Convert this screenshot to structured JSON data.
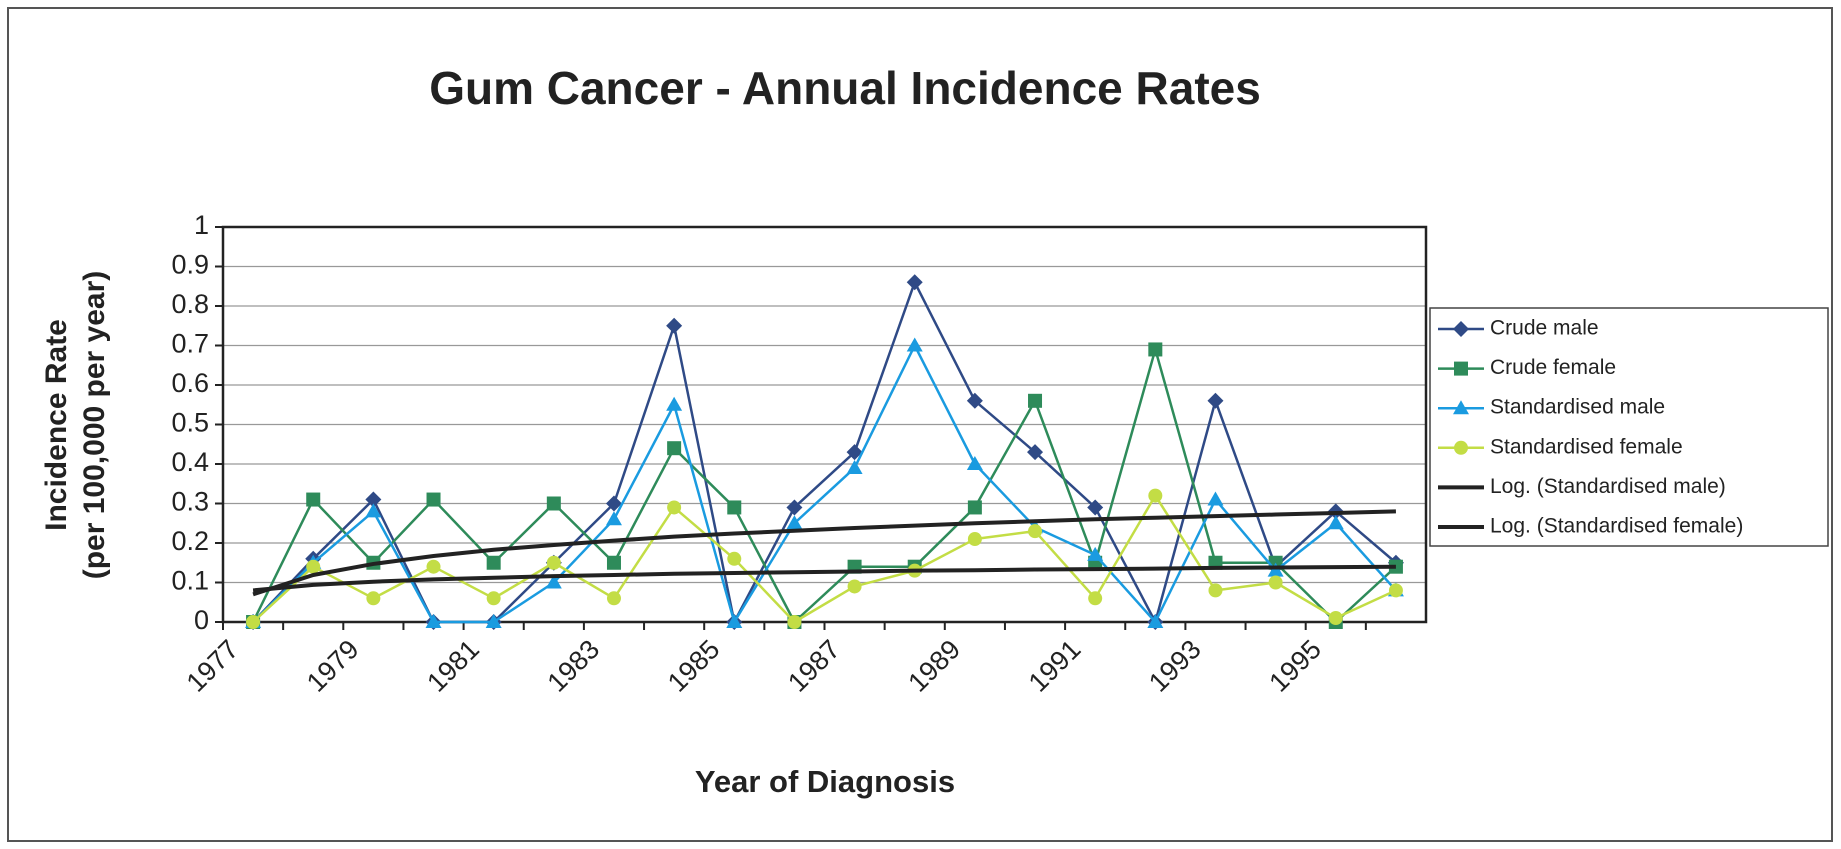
{
  "chart_data": {
    "type": "line",
    "title": "Gum Cancer - Annual Incidence Rates",
    "x_label": "Year of Diagnosis",
    "y_label": [
      "Incidence Rate",
      "(per 100,000 per year)"
    ],
    "categories": [
      "1977",
      null,
      "1979",
      null,
      "1981",
      null,
      "1983",
      null,
      "1985",
      null,
      "1987",
      null,
      "1989",
      null,
      "1991",
      null,
      "1993",
      null,
      "1995",
      null
    ],
    "ylim": [
      0,
      1
    ],
    "yticks": [
      0,
      0.1,
      0.2,
      0.3,
      0.4,
      0.5,
      0.6,
      0.7,
      0.8,
      0.9,
      1
    ],
    "grid": true,
    "legend": "right",
    "series": [
      {
        "name": "Crude male",
        "color": "#2f4a86",
        "marker": "diamond",
        "values": [
          0,
          0.16,
          0.31,
          0,
          0,
          0.15,
          0.3,
          0.75,
          0,
          0.29,
          0.43,
          0.86,
          0.56,
          0.43,
          0.29,
          0,
          0.56,
          0.14,
          0.28,
          0.15
        ]
      },
      {
        "name": "Crude female",
        "color": "#2e8b5a",
        "marker": "square",
        "values": [
          0,
          0.31,
          0.15,
          0.31,
          0.15,
          0.3,
          0.15,
          0.44,
          0.29,
          0,
          0.14,
          0.14,
          0.29,
          0.56,
          0.15,
          0.69,
          0.15,
          0.15,
          0,
          0.14
        ]
      },
      {
        "name": "Standardised male",
        "color": "#1a9be0",
        "marker": "triangle",
        "values": [
          0,
          0.15,
          0.28,
          0,
          0,
          0.1,
          0.26,
          0.55,
          0,
          0.25,
          0.39,
          0.7,
          0.4,
          0.24,
          0.17,
          0,
          0.31,
          0.13,
          0.25,
          0.08
        ]
      },
      {
        "name": "Standardised female",
        "color": "#c3dd45",
        "marker": "circle",
        "values": [
          0,
          0.14,
          0.06,
          0.14,
          0.06,
          0.15,
          0.06,
          0.29,
          0.16,
          0,
          0.09,
          0.13,
          0.21,
          0.23,
          0.06,
          0.32,
          0.08,
          0.1,
          0.01,
          0.08
        ]
      },
      {
        "name": "Log. (Standardised male)",
        "color": "#222222",
        "marker": "none",
        "values": [
          0.07,
          0.119,
          0.147,
          0.167,
          0.183,
          0.195,
          0.206,
          0.216,
          0.224,
          0.231,
          0.238,
          0.244,
          0.25,
          0.255,
          0.26,
          0.264,
          0.268,
          0.272,
          0.276,
          0.28
        ]
      },
      {
        "name": "Log. (Standardised female)",
        "color": "#222222",
        "marker": "none",
        "values": [
          0.08,
          0.094,
          0.102,
          0.108,
          0.112,
          0.116,
          0.119,
          0.122,
          0.124,
          0.126,
          0.128,
          0.13,
          0.131,
          0.133,
          0.134,
          0.135,
          0.137,
          0.138,
          0.139,
          0.14
        ]
      }
    ]
  }
}
